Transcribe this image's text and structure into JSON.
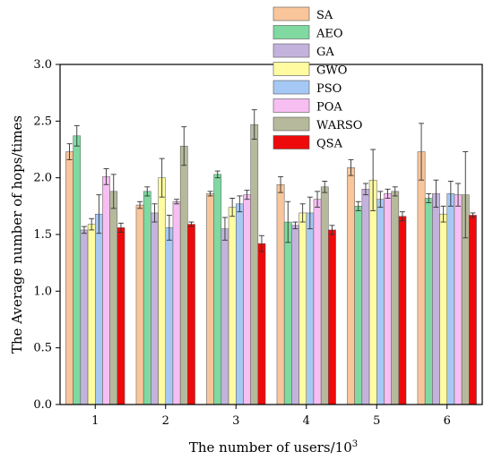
{
  "chart_data": {
    "type": "bar",
    "title": "",
    "xlabel": "The number of users/10",
    "xlabel_superscript": "3",
    "ylabel": "The Average number of hops/times",
    "ylim": [
      0,
      3
    ],
    "yticks": [
      "0.0",
      "0.5",
      "1.0",
      "1.5",
      "2.0",
      "2.5",
      "3.0"
    ],
    "categories": [
      "1",
      "2",
      "3",
      "4",
      "5",
      "6"
    ],
    "legend_position": "top-right",
    "error_bars": true,
    "series": [
      {
        "name": "SA",
        "color": "#f9c59a",
        "values": [
          2.23,
          1.76,
          1.86,
          1.94,
          2.09,
          2.23
        ],
        "errors": [
          0.07,
          0.03,
          0.02,
          0.07,
          0.07,
          0.25
        ]
      },
      {
        "name": "AEO",
        "color": "#7fd9a0",
        "values": [
          2.37,
          1.88,
          2.03,
          1.61,
          1.75,
          1.82
        ],
        "errors": [
          0.09,
          0.04,
          0.03,
          0.18,
          0.04,
          0.04
        ]
      },
      {
        "name": "GA",
        "color": "#c3b3dc",
        "values": [
          1.54,
          1.69,
          1.55,
          1.58,
          1.9,
          1.86
        ],
        "errors": [
          0.03,
          0.08,
          0.1,
          0.03,
          0.05,
          0.12
        ]
      },
      {
        "name": "GWO",
        "color": "#fefba0",
        "values": [
          1.59,
          2.0,
          1.74,
          1.69,
          1.98,
          1.68
        ],
        "errors": [
          0.05,
          0.17,
          0.08,
          0.08,
          0.27,
          0.07
        ]
      },
      {
        "name": "PSO",
        "color": "#a6c8f4",
        "values": [
          1.68,
          1.56,
          1.77,
          1.69,
          1.81,
          1.86
        ],
        "errors": [
          0.17,
          0.11,
          0.07,
          0.14,
          0.07,
          0.11
        ]
      },
      {
        "name": "POA",
        "color": "#f7bef2",
        "values": [
          2.01,
          1.79,
          1.85,
          1.81,
          1.86,
          1.85
        ],
        "errors": [
          0.07,
          0.02,
          0.04,
          0.07,
          0.04,
          0.1
        ]
      },
      {
        "name": "WARSO",
        "color": "#b6b99c",
        "values": [
          1.88,
          2.28,
          2.47,
          1.92,
          1.88,
          1.85
        ],
        "errors": [
          0.15,
          0.17,
          0.13,
          0.05,
          0.04,
          0.38
        ]
      },
      {
        "name": "QSA",
        "color": "#ee0a0a",
        "values": [
          1.56,
          1.59,
          1.42,
          1.54,
          1.66,
          1.67
        ],
        "errors": [
          0.04,
          0.02,
          0.07,
          0.04,
          0.04,
          0.02
        ]
      }
    ]
  }
}
